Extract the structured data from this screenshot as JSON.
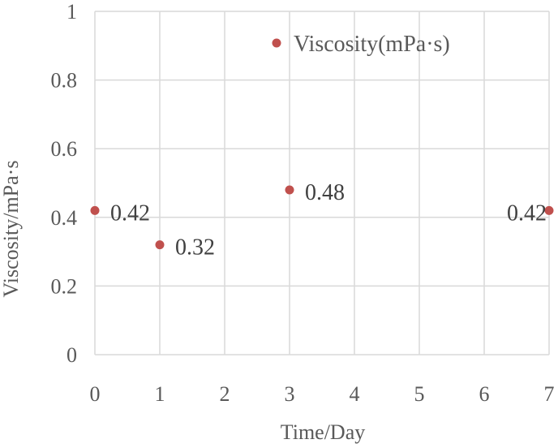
{
  "chart_data": {
    "type": "scatter",
    "title": "",
    "xlabel": "Time/Day",
    "ylabel": "Viscosity/mPa·s",
    "xlim": [
      0,
      7
    ],
    "ylim": [
      0,
      1
    ],
    "x_ticks": [
      0,
      1,
      2,
      3,
      4,
      5,
      6,
      7
    ],
    "y_ticks": [
      0,
      0.2,
      0.4,
      0.6,
      0.8,
      1
    ],
    "x_tick_labels": [
      "0",
      "1",
      "2",
      "3",
      "4",
      "5",
      "6",
      "7"
    ],
    "y_tick_labels": [
      "0",
      "0.2",
      "0.4",
      "0.6",
      "0.8",
      "1"
    ],
    "grid": true,
    "legend_position": "top-right",
    "series": [
      {
        "name": "Viscosity(mPa·s)",
        "color": "#c0504d",
        "x": [
          0,
          1,
          3,
          7
        ],
        "y": [
          0.42,
          0.32,
          0.48,
          0.42
        ],
        "labels": [
          "0.42",
          "0.32",
          "0.48",
          "0.42"
        ]
      }
    ]
  }
}
